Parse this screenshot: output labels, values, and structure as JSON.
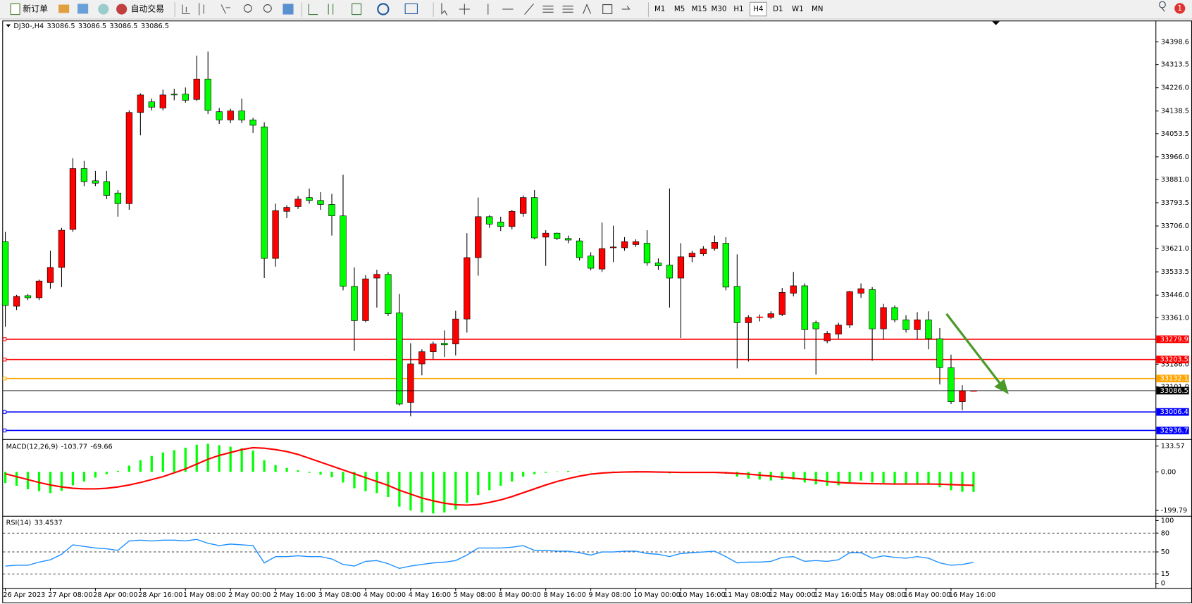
{
  "toolbar": {
    "new_order": "新订单",
    "auto_trading": "自动交易",
    "timeframes": [
      {
        "label": "M1"
      },
      {
        "label": "M5"
      },
      {
        "label": "M15"
      },
      {
        "label": "M30"
      },
      {
        "label": "H1"
      },
      {
        "label": "H4",
        "selected": true
      },
      {
        "label": "D1"
      },
      {
        "label": "W1"
      },
      {
        "label": "MN"
      }
    ],
    "notifications": 1
  },
  "chart_data": [
    {
      "type": "candlestick",
      "title": "DJ30-,H4",
      "bull_color": "#ff0000",
      "bear_color": "#00ff00",
      "price_line_color": "#000000",
      "categories": [
        "26 Apr 2023",
        null,
        null,
        null,
        "27 Apr 08:00",
        null,
        null,
        null,
        "28 Apr 00:00",
        null,
        null,
        null,
        "28 Apr 16:00",
        null,
        null,
        null,
        "1 May 08:00",
        null,
        null,
        null,
        "2 May 00:00",
        null,
        null,
        null,
        "2 May 16:00",
        null,
        null,
        null,
        "3 May 08:00",
        null,
        null,
        null,
        "4 May 00:00",
        null,
        null,
        null,
        "4 May 16:00",
        null,
        null,
        null,
        "5 May 08:00",
        null,
        null,
        null,
        "8 May 00:00",
        null,
        null,
        null,
        "8 May 16:00",
        null,
        null,
        null,
        "9 May 08:00",
        null,
        null,
        null,
        "10 May 00:00",
        null,
        null,
        null,
        "10 May 16:00",
        null,
        null,
        null,
        "11 May 08:00",
        null,
        null,
        null,
        "12 May 00:00",
        null,
        null,
        null,
        "12 May 16:00",
        null,
        null,
        null,
        "15 May 08:00",
        null,
        null,
        null,
        "16 May 00:00",
        null,
        null,
        null,
        "16 May 16:00",
        null,
        null
      ],
      "ohlc": [
        [
          33647,
          33684,
          33327,
          33407
        ],
        [
          33404,
          33447,
          33390,
          33441
        ],
        [
          33444,
          33450,
          33427,
          33436
        ],
        [
          33436,
          33504,
          33427,
          33499
        ],
        [
          33493,
          33613,
          33470,
          33550
        ],
        [
          33550,
          33699,
          33476,
          33690
        ],
        [
          33693,
          33961,
          33684,
          33922
        ],
        [
          33922,
          33951,
          33856,
          33873
        ],
        [
          33876,
          33913,
          33856,
          33867
        ],
        [
          33873,
          33913,
          33807,
          33821
        ],
        [
          33830,
          33841,
          33741,
          33790
        ],
        [
          33790,
          34141,
          33767,
          34133
        ],
        [
          34133,
          34205,
          34047,
          34199
        ],
        [
          34173,
          34185,
          34141,
          34153
        ],
        [
          34150,
          34219,
          34141,
          34199
        ],
        [
          34202,
          34222,
          34179,
          34199
        ],
        [
          34202,
          34227,
          34170,
          34179
        ],
        [
          34182,
          34347,
          34176,
          34259
        ],
        [
          34259,
          34362,
          34127,
          34141
        ],
        [
          34136,
          34150,
          34090,
          34105
        ],
        [
          34105,
          34147,
          34093,
          34139
        ],
        [
          34139,
          34185,
          34093,
          34105
        ],
        [
          34105,
          34113,
          34056,
          34085
        ],
        [
          34079,
          34096,
          33510,
          33584
        ],
        [
          33584,
          33790,
          33553,
          33764
        ],
        [
          33761,
          33784,
          33736,
          33776
        ],
        [
          33779,
          33819,
          33770,
          33807
        ],
        [
          33813,
          33847,
          33790,
          33802
        ],
        [
          33802,
          33833,
          33767,
          33787
        ],
        [
          33787,
          33827,
          33670,
          33744
        ],
        [
          33744,
          33899,
          33464,
          33479
        ],
        [
          33479,
          33550,
          33236,
          33350
        ],
        [
          33350,
          33521,
          33344,
          33507
        ],
        [
          33510,
          33541,
          33399,
          33524
        ],
        [
          33524,
          33533,
          33367,
          33376
        ],
        [
          33379,
          33450,
          33030,
          33036
        ],
        [
          33042,
          33265,
          32990,
          33187
        ],
        [
          33187,
          33242,
          33144,
          33233
        ],
        [
          33233,
          33271,
          33205,
          33262
        ],
        [
          33265,
          33313,
          33213,
          33259
        ],
        [
          33262,
          33387,
          33219,
          33356
        ],
        [
          33356,
          33679,
          33305,
          33587
        ],
        [
          33587,
          33813,
          33519,
          33741
        ],
        [
          33741,
          33747,
          33699,
          33713
        ],
        [
          33721,
          33741,
          33687,
          33704
        ],
        [
          33704,
          33767,
          33693,
          33761
        ],
        [
          33753,
          33821,
          33741,
          33813
        ],
        [
          33813,
          33841,
          33656,
          33661
        ],
        [
          33664,
          33690,
          33556,
          33679
        ],
        [
          33679,
          33681,
          33653,
          33659
        ],
        [
          33659,
          33670,
          33641,
          33653
        ],
        [
          33650,
          33661,
          33576,
          33587
        ],
        [
          33593,
          33607,
          33539,
          33547
        ],
        [
          33544,
          33719,
          33533,
          33621
        ],
        [
          33624,
          33707,
          33570,
          33627
        ],
        [
          33624,
          33664,
          33613,
          33647
        ],
        [
          33636,
          33656,
          33627,
          33647
        ],
        [
          33641,
          33690,
          33556,
          33567
        ],
        [
          33567,
          33584,
          33541,
          33556
        ],
        [
          33559,
          33847,
          33399,
          33510
        ],
        [
          33510,
          33641,
          33285,
          33590
        ],
        [
          33590,
          33613,
          33570,
          33604
        ],
        [
          33601,
          33630,
          33593,
          33619
        ],
        [
          33621,
          33670,
          33613,
          33644
        ],
        [
          33641,
          33664,
          33464,
          33476
        ],
        [
          33479,
          33599,
          33170,
          33342
        ],
        [
          33342,
          33370,
          33196,
          33362
        ],
        [
          33362,
          33373,
          33347,
          33364
        ],
        [
          33362,
          33385,
          33356,
          33376
        ],
        [
          33373,
          33473,
          33367,
          33456
        ],
        [
          33453,
          33533,
          33441,
          33481
        ],
        [
          33481,
          33490,
          33242,
          33316
        ],
        [
          33342,
          33350,
          33147,
          33319
        ],
        [
          33274,
          33311,
          33265,
          33302
        ],
        [
          33299,
          33342,
          33282,
          33333
        ],
        [
          33333,
          33462,
          33322,
          33459
        ],
        [
          33453,
          33490,
          33436,
          33470
        ],
        [
          33467,
          33476,
          33199,
          33319
        ],
        [
          33319,
          33413,
          33279,
          33399
        ],
        [
          33399,
          33407,
          33344,
          33353
        ],
        [
          33353,
          33370,
          33305,
          33316
        ],
        [
          33316,
          33382,
          33279,
          33353
        ],
        [
          33353,
          33385,
          33242,
          33282
        ],
        [
          33282,
          33322,
          33110,
          33173
        ],
        [
          33173,
          33222,
          33036,
          33045
        ],
        [
          33045,
          33107,
          33013,
          33086.5
        ],
        [
          33086.5,
          33086.5,
          33086.5,
          33086.5
        ]
      ],
      "levels": [
        {
          "value": 33279.9,
          "color": "#ff0000"
        },
        {
          "value": 33203.5,
          "color": "#ff0000"
        },
        {
          "value": 33132.1,
          "color": "#ffa500"
        },
        {
          "value": 33006.4,
          "color": "#0000ff"
        },
        {
          "value": 32936.7,
          "color": "#0000ff"
        }
      ],
      "ylim": [
        32907,
        34476
      ],
      "yticks": [
        34398.6,
        34313.5,
        {
          "value": 34226,
          "label": "34226.0"
        },
        34138.5,
        34053.5,
        {
          "value": 33966,
          "label": "33966.0"
        },
        {
          "value": 33881,
          "label": "33881.0"
        },
        33793.5,
        {
          "value": 33706,
          "label": "33706.0"
        },
        {
          "value": 33621,
          "label": "33621.0"
        },
        33533.5,
        {
          "value": 33446,
          "label": "33446.0"
        },
        {
          "value": 33361,
          "label": "33361.0"
        },
        {
          "value": 33186,
          "label": "33186.0"
        },
        {
          "value": 33101,
          "label": "33101.0"
        }
      ]
    },
    {
      "type": "macd",
      "title": "MACD(12,26,9)",
      "histogram_color": "#00ff00",
      "signal_color": "#ff0000",
      "histogram": [
        -58,
        -72,
        -90,
        -100,
        -110,
        -98,
        -70,
        -50,
        -30,
        -12,
        5,
        32,
        60,
        82,
        100,
        112,
        125,
        140,
        145,
        138,
        130,
        122,
        110,
        60,
        35,
        20,
        8,
        -5,
        -15,
        -28,
        -55,
        -85,
        -100,
        -110,
        -130,
        -180,
        -200,
        -210,
        -215,
        -210,
        -195,
        -160,
        -120,
        -95,
        -72,
        -50,
        -25,
        -12,
        -5,
        2,
        5,
        2,
        -2,
        0,
        2,
        3,
        4,
        0,
        -4,
        -8,
        -6,
        -4,
        -2,
        0,
        -10,
        -25,
        -35,
        -40,
        -45,
        -42,
        -40,
        -55,
        -65,
        -72,
        -70,
        -55,
        -45,
        -55,
        -58,
        -60,
        -62,
        -60,
        -65,
        -80,
        -95,
        -103,
        -103.77
      ],
      "signal": [
        -10,
        -25,
        -40,
        -55,
        -68,
        -78,
        -85,
        -88,
        -88,
        -85,
        -78,
        -68,
        -55,
        -40,
        -25,
        -5,
        15,
        40,
        65,
        85,
        100,
        115,
        125,
        122,
        115,
        105,
        90,
        70,
        50,
        30,
        10,
        -10,
        -30,
        -50,
        -70,
        -95,
        -115,
        -135,
        -150,
        -162,
        -170,
        -172,
        -168,
        -158,
        -145,
        -128,
        -108,
        -88,
        -68,
        -50,
        -35,
        -22,
        -12,
        -6,
        -3,
        -1,
        0,
        0,
        -1,
        -2,
        -3,
        -3,
        -3,
        -3,
        -5,
        -8,
        -12,
        -17,
        -22,
        -28,
        -33,
        -38,
        -43,
        -50,
        -55,
        -58,
        -60,
        -61,
        -62,
        -63,
        -63,
        -63,
        -63,
        -64,
        -66,
        -68,
        -69.66
      ],
      "ylim": [
        -219.6,
        161.3
      ],
      "yticks": [
        133.57,
        {
          "value": 0,
          "label": "0.00"
        },
        -199.79
      ]
    },
    {
      "type": "rsi",
      "title": "RSI(14)",
      "color": "#1e90ff",
      "values": [
        27.5,
        28.75,
        28.75,
        33.75,
        37.5,
        46.25,
        61.25,
        58.75,
        56.25,
        55,
        52.5,
        67.5,
        68.75,
        67.5,
        68.75,
        68.75,
        67.5,
        70,
        63.75,
        60,
        62.5,
        61.25,
        60,
        32.5,
        42.5,
        42.5,
        43.75,
        42.5,
        42.5,
        38.75,
        30,
        27.5,
        35,
        36.25,
        31.25,
        23.75,
        27.5,
        30,
        32.5,
        33.75,
        36.25,
        45,
        56.25,
        56.25,
        56.25,
        57.5,
        60,
        52.5,
        52.5,
        51.25,
        51.25,
        48.75,
        45,
        50,
        50,
        51.25,
        51.25,
        47.5,
        46.25,
        42.5,
        47.5,
        48.75,
        50,
        51.25,
        42.5,
        32.5,
        33.75,
        33.75,
        35,
        41.25,
        42.5,
        35,
        36.25,
        35,
        37.5,
        48.75,
        48.75,
        40,
        43.75,
        41.25,
        40,
        42.5,
        40,
        32.5,
        28.75,
        30,
        33.4537
      ],
      "levels": [
        80,
        50,
        15
      ],
      "ylim": [
        -6.25,
        106.25
      ],
      "yticks": [
        100,
        80,
        50,
        15,
        0
      ]
    }
  ]
}
